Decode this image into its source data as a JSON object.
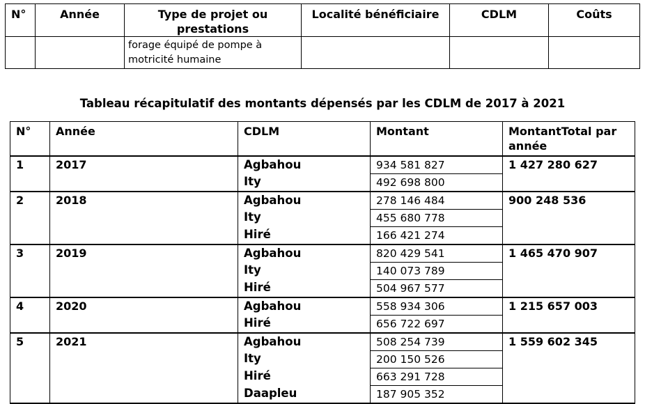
{
  "top_table": {
    "headers": [
      "N°",
      "Année",
      "Type de projet ou prestations",
      "Localité bénéficiaire",
      "CDLM",
      "Coûts"
    ],
    "row": {
      "num": "",
      "annee": "",
      "type_line1": "forage équipé de pompe à",
      "type_line2": "motricité humaine",
      "localite": "",
      "cdlm": "",
      "couts": ""
    }
  },
  "summary": {
    "title": "Tableau récapitulatif des montants dépensés par les CDLM de 2017 à 2021",
    "headers": {
      "num": "N°",
      "annee": "Année",
      "cdlm": "CDLM",
      "montant": "Montant",
      "total_line1": "MontantTotal par",
      "total_line2": "année"
    },
    "groups": [
      {
        "num": "1",
        "year": "2017",
        "total": "1 427 280 627",
        "rows": [
          {
            "cdlm": "Agbahou",
            "amount": "934 581 827"
          },
          {
            "cdlm": "Ity",
            "amount": "492 698 800"
          }
        ]
      },
      {
        "num": "2",
        "year": "2018",
        "total": "900 248 536",
        "rows": [
          {
            "cdlm": "Agbahou",
            "amount": "278 146 484"
          },
          {
            "cdlm": "Ity",
            "amount": "455 680 778"
          },
          {
            "cdlm": "Hiré",
            "amount": "166 421 274"
          }
        ]
      },
      {
        "num": "3",
        "year": "2019",
        "total": "1 465 470 907",
        "rows": [
          {
            "cdlm": "Agbahou",
            "amount": "820 429 541"
          },
          {
            "cdlm": "Ity",
            "amount": "140 073 789"
          },
          {
            "cdlm": "Hiré",
            "amount": "504 967 577"
          }
        ]
      },
      {
        "num": "4",
        "year": "2020",
        "total": "1 215 657 003",
        "rows": [
          {
            "cdlm": "Agbahou",
            "amount": "558 934 306"
          },
          {
            "cdlm": "Hiré",
            "amount": "656 722 697"
          }
        ]
      },
      {
        "num": "5",
        "year": "2021",
        "total": "1 559 602 345",
        "rows": [
          {
            "cdlm": "Agbahou",
            "amount": "508 254 739"
          },
          {
            "cdlm": "Ity",
            "amount": "200 150 526"
          },
          {
            "cdlm": "Hiré",
            "amount": "663 291 728"
          },
          {
            "cdlm": "Daapleu",
            "amount": "187 905 352"
          }
        ]
      }
    ]
  }
}
